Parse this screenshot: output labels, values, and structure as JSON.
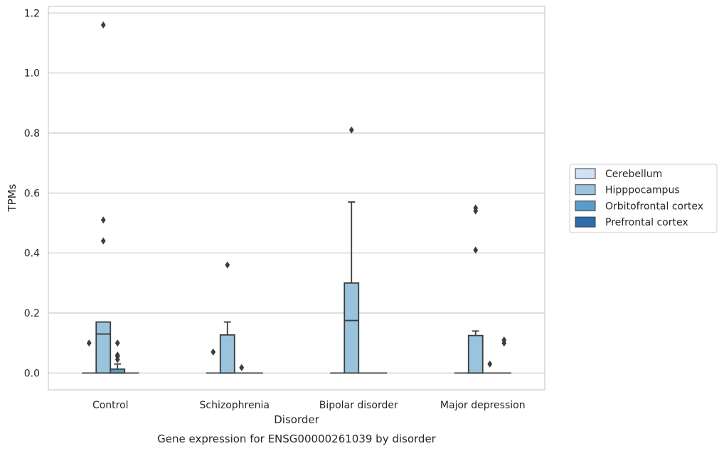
{
  "chart_data": {
    "type": "box",
    "title": "Gene expression for ENSG00000261039 by disorder",
    "xlabel": "Disorder",
    "ylabel": "TPMs",
    "ylim": [
      -0.056,
      1.222
    ],
    "yticks": [
      "0.0",
      "0.2",
      "0.4",
      "0.6",
      "0.8",
      "1.0",
      "1.2"
    ],
    "ytick_values": [
      0,
      0.2,
      0.4,
      0.6,
      0.8,
      1.0,
      1.2
    ],
    "grid": "horizontal",
    "legend_position": "right",
    "categories": [
      "Control",
      "Schizophrenia",
      "Bipolar disorder",
      "Major depression"
    ],
    "series": [
      {
        "name": "Cerebellum",
        "color": "#d0e1f2",
        "boxes": [
          {
            "min": 0,
            "q1": 0,
            "median": 0,
            "q3": 0,
            "max": 0,
            "outliers": [
              0.1
            ]
          },
          {
            "min": 0,
            "q1": 0,
            "median": 0,
            "q3": 0,
            "max": 0,
            "outliers": [
              0.07
            ]
          },
          {
            "min": 0,
            "q1": 0,
            "median": 0,
            "q3": 0,
            "max": 0,
            "outliers": []
          },
          {
            "min": 0,
            "q1": 0,
            "median": 0,
            "q3": 0,
            "max": 0,
            "outliers": []
          }
        ]
      },
      {
        "name": "Hipppocampus",
        "color": "#9ac3dd",
        "boxes": [
          {
            "min": 0,
            "q1": 0,
            "median": 0.13,
            "q3": 0.17,
            "max": 0.17,
            "outliers": [
              0.44,
              0.51,
              1.16
            ]
          },
          {
            "min": 0,
            "q1": 0,
            "median": 0,
            "q3": 0.127,
            "max": 0.17,
            "outliers": [
              0.36
            ]
          },
          {
            "min": 0,
            "q1": 0,
            "median": 0.175,
            "q3": 0.3,
            "max": 0.57,
            "outliers": [
              0.81
            ]
          },
          {
            "min": 0,
            "q1": 0,
            "median": 0,
            "q3": 0.125,
            "max": 0.14,
            "outliers": [
              0.41,
              0.54,
              0.55
            ]
          }
        ]
      },
      {
        "name": "Orbitofrontal cortex",
        "color": "#5a9bc8",
        "boxes": [
          {
            "min": 0,
            "q1": 0,
            "median": 0,
            "q3": 0.013,
            "max": 0.03,
            "outliers": [
              0.045,
              0.055,
              0.06,
              0.1
            ]
          },
          {
            "min": 0,
            "q1": 0,
            "median": 0,
            "q3": 0,
            "max": 0,
            "outliers": [
              0.018
            ]
          },
          {
            "min": 0,
            "q1": 0,
            "median": 0,
            "q3": 0,
            "max": 0,
            "outliers": []
          },
          {
            "min": 0,
            "q1": 0,
            "median": 0,
            "q3": 0,
            "max": 0,
            "outliers": [
              0.03
            ]
          }
        ]
      },
      {
        "name": "Prefrontal cortex",
        "color": "#2d6eaa",
        "boxes": [
          {
            "min": 0,
            "q1": 0,
            "median": 0,
            "q3": 0,
            "max": 0,
            "outliers": []
          },
          {
            "min": 0,
            "q1": 0,
            "median": 0,
            "q3": 0,
            "max": 0,
            "outliers": []
          },
          {
            "min": 0,
            "q1": 0,
            "median": 0,
            "q3": 0,
            "max": 0,
            "outliers": []
          },
          {
            "min": 0,
            "q1": 0,
            "median": 0,
            "q3": 0,
            "max": 0,
            "outliers": [
              0.1,
              0.11
            ]
          }
        ]
      }
    ]
  }
}
